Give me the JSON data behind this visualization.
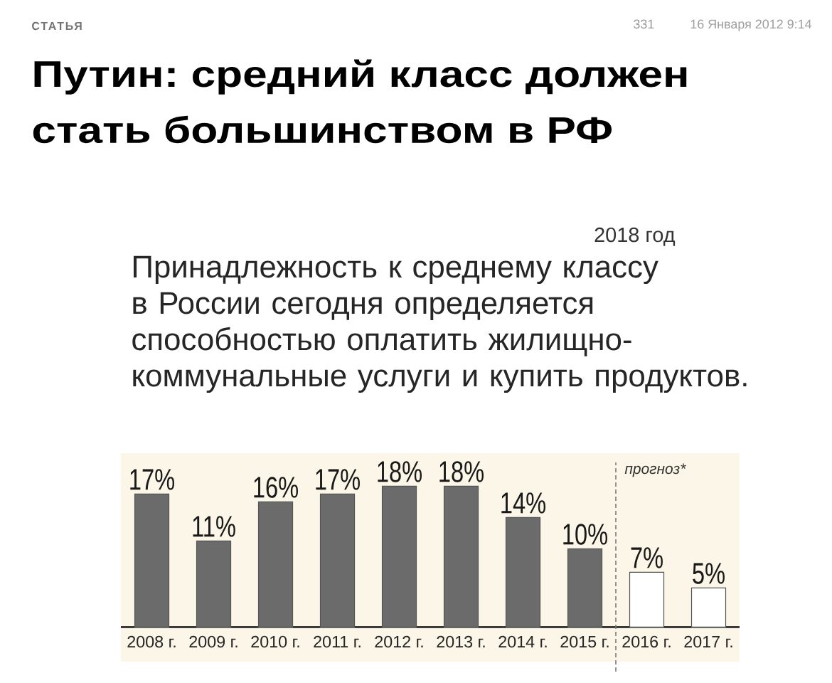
{
  "chart_data": {
    "type": "bar",
    "title": "Путин: средний класс должен стать большинством в РФ",
    "subtitle": "Принадлежность к среднему классу в России сегодня определяется способностью оплатить жилищно-коммунальные услуги и купить продуктов.",
    "annotations": [
      "СТАТЬЯ",
      "331",
      "16 Января 2012 9:14",
      "2018 год",
      "прогноз*"
    ],
    "categories": [
      "2008 г.",
      "2009 г.",
      "2010 г.",
      "2011 г.",
      "2012 г.",
      "2013 г.",
      "2014 г.",
      "2015 г.",
      "2016 г.",
      "2017 г."
    ],
    "values": [
      17,
      11,
      16,
      17,
      18,
      18,
      14,
      10,
      7,
      5
    ],
    "value_labels": [
      "17%",
      "11%",
      "16%",
      "17%",
      "18%",
      "18%",
      "14%",
      "10%",
      "7%",
      "5%"
    ],
    "colors": [
      "#6b6b6b",
      "#6b6b6b",
      "#6b6b6b",
      "#6b6b6b",
      "#6b6b6b",
      "#6b6b6b",
      "#6b6b6b",
      "#6b6b6b",
      "#ffffff",
      "#ffffff"
    ],
    "tick_labels": "x"
  }
}
